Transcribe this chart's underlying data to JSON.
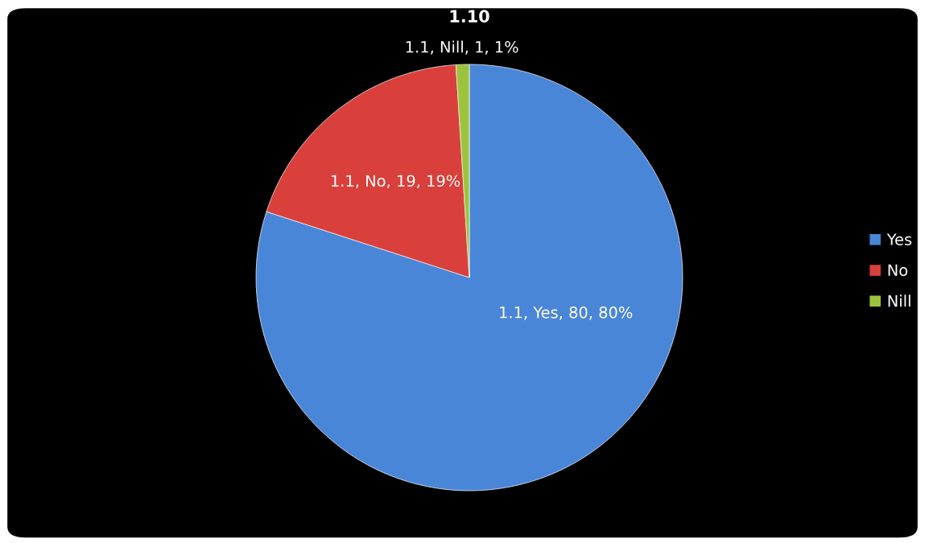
{
  "chart_data": {
    "type": "pie",
    "title": "1.10",
    "categories": [
      "Yes",
      "No",
      "Nill"
    ],
    "values": [
      80,
      19,
      1
    ],
    "colors": [
      "#4a86d8",
      "#d9403b",
      "#9bc43c"
    ],
    "value_labels": [
      "1.1, Yes, 80, 80%",
      "1.1, No, 19, 19%",
      "1.1, Nill, 1, 1%"
    ],
    "legend": "right"
  }
}
